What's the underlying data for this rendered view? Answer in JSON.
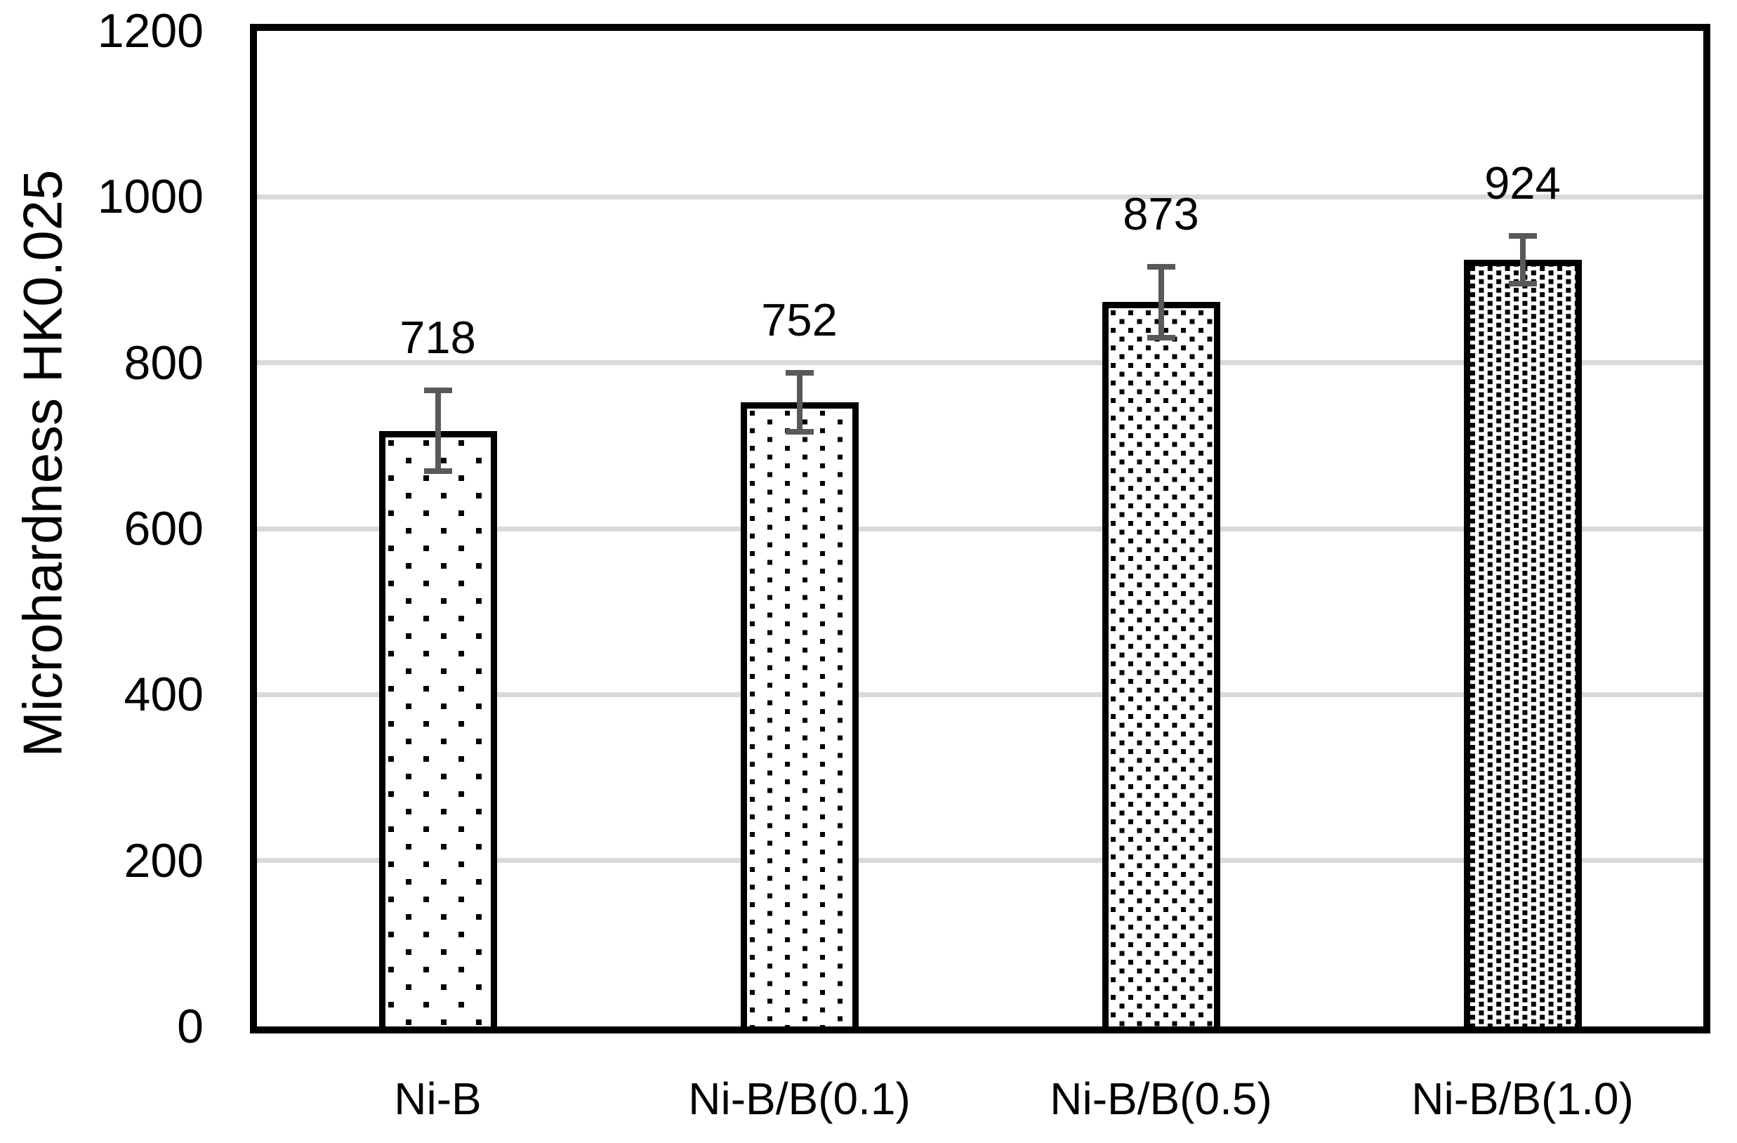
{
  "chart_data": {
    "type": "bar",
    "title": "",
    "xlabel": "",
    "ylabel": "Microhardness HK0.025",
    "categories": [
      "Ni-B",
      "Ni-B/B(0.1)",
      "Ni-B/B(0.5)",
      "Ni-B/B(1.0)"
    ],
    "values": [
      718,
      752,
      873,
      924
    ],
    "data_labels": [
      "718",
      "752",
      "873",
      "924"
    ],
    "error_bars": [
      52,
      39,
      46,
      32
    ],
    "ylim": [
      0,
      1200
    ],
    "yticks": [
      0,
      200,
      400,
      600,
      800,
      1000,
      1200
    ],
    "grid": "horizontal",
    "legend": "none",
    "bar_patterns": [
      "dots-sparse-5pct",
      "dots-10pct",
      "dots-20pct",
      "dots-dense-30pct"
    ],
    "colors": {
      "bar_fill": "#ffffff",
      "bar_pattern_dot": "#000000",
      "bar_border": "#000000",
      "error_bar": "#595959",
      "gridline": "#d9d9d9",
      "axis_frame": "#000000",
      "text": "#000000"
    }
  }
}
